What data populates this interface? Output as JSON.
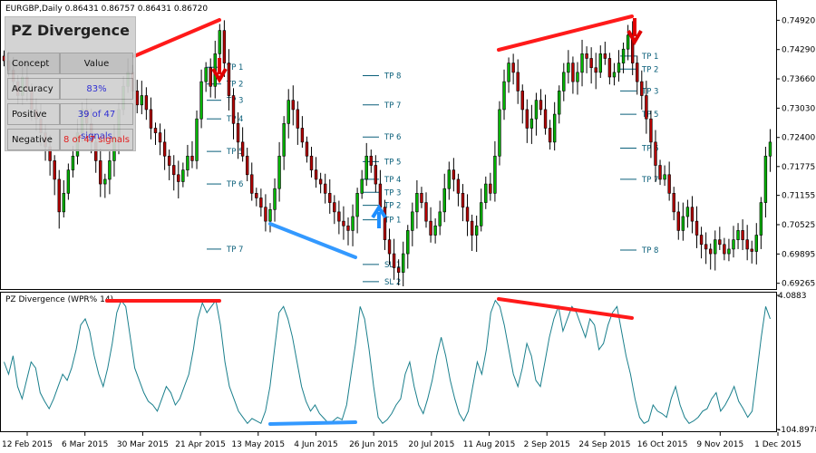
{
  "chart_title": "EURGBP,Daily  0.86431 0.86757 0.86431 0.86720",
  "indicator_label": "PZ Divergence (WPR% 14)",
  "stats": {
    "title": "PZ Divergence",
    "header": [
      "Concept",
      "Value"
    ],
    "rows": [
      {
        "concept": "Accuracy",
        "value": "83%",
        "tone": "good"
      },
      {
        "concept": "Positive",
        "value": "39 of 47 signals",
        "tone": "good"
      },
      {
        "concept": "Negative",
        "value": "8 of 47 signals",
        "tone": "bad"
      }
    ]
  },
  "colors": {
    "bull": "#00b400",
    "bear": "#b40000",
    "wick": "#000000",
    "tp": "#0a5f7a",
    "divergence_bear": "#ff1a1a",
    "divergence_bull": "#3399ff",
    "wpr_line": "#1a7f8c"
  },
  "chart_data": [
    {
      "type": "candlestick",
      "title": "EURGBP,Daily",
      "ylim": [
        0.692,
        0.752
      ],
      "y_ticks": [
        "0.74920",
        "0.74290",
        "0.73660",
        "0.73030",
        "0.72400",
        "0.71775",
        "0.71155",
        "0.70525",
        "0.69895",
        "0.69265"
      ],
      "x_ticks": [
        "12 Feb 2015",
        "6 Mar 2015",
        "30 Mar 2015",
        "21 Apr 2015",
        "13 May 2015",
        "4 Jun 2015",
        "26 Jun 2015",
        "20 Jul 2015",
        "11 Aug 2015",
        "2 Sep 2015",
        "24 Sep 2015",
        "16 Oct 2015",
        "9 Nov 2015",
        "1 Dec 2015"
      ],
      "closes": [
        0.7405,
        0.7385,
        0.736,
        0.733,
        0.737,
        0.734,
        0.73,
        0.728,
        0.725,
        0.722,
        0.719,
        0.715,
        0.708,
        0.712,
        0.717,
        0.72,
        0.725,
        0.73,
        0.727,
        0.723,
        0.719,
        0.714,
        0.715,
        0.719,
        0.724,
        0.73,
        0.735,
        0.738,
        0.734,
        0.731,
        0.733,
        0.73,
        0.726,
        0.725,
        0.723,
        0.72,
        0.718,
        0.716,
        0.7145,
        0.717,
        0.72,
        0.719,
        0.728,
        0.736,
        0.739,
        0.735,
        0.742,
        0.747,
        0.74,
        0.733,
        0.727,
        0.723,
        0.72,
        0.716,
        0.712,
        0.711,
        0.709,
        0.706,
        0.7085,
        0.713,
        0.72,
        0.727,
        0.732,
        0.73,
        0.726,
        0.723,
        0.72,
        0.717,
        0.715,
        0.714,
        0.712,
        0.71,
        0.708,
        0.706,
        0.705,
        0.704,
        0.707,
        0.712,
        0.715,
        0.72,
        0.718,
        0.714,
        0.709,
        0.702,
        0.699,
        0.696,
        0.695,
        0.699,
        0.704,
        0.708,
        0.712,
        0.71,
        0.706,
        0.703,
        0.705,
        0.708,
        0.713,
        0.717,
        0.715,
        0.712,
        0.709,
        0.706,
        0.703,
        0.705,
        0.71,
        0.714,
        0.712,
        0.72,
        0.73,
        0.736,
        0.74,
        0.738,
        0.734,
        0.73,
        0.726,
        0.728,
        0.732,
        0.73,
        0.726,
        0.723,
        0.729,
        0.734,
        0.738,
        0.74,
        0.736,
        0.738,
        0.742,
        0.741,
        0.739,
        0.738,
        0.742,
        0.741,
        0.737,
        0.738,
        0.74,
        0.743,
        0.746,
        0.74,
        0.736,
        0.733,
        0.728,
        0.723,
        0.718,
        0.715,
        0.716,
        0.712,
        0.708,
        0.704,
        0.707,
        0.709,
        0.706,
        0.703,
        0.701,
        0.7,
        0.699,
        0.702,
        0.701,
        0.699,
        0.7,
        0.702,
        0.704,
        0.702,
        0.7,
        0.6995,
        0.703,
        0.71,
        0.72,
        0.723
      ],
      "take_profit_levels": [
        {
          "label": "TP 1",
          "price": 0.7391
        },
        {
          "label": "TP 2",
          "price": 0.7355
        },
        {
          "label": "TP 3",
          "price": 0.732
        },
        {
          "label": "TP 4",
          "price": 0.728
        },
        {
          "label": "TP 5",
          "price": 0.721
        },
        {
          "label": "TP 6",
          "price": 0.714
        },
        {
          "label": "TP 7",
          "price": 0.7
        },
        {
          "label": "TP 8",
          "price": 0.7373
        },
        {
          "label": "TP 7",
          "price": 0.731
        },
        {
          "label": "TP 6",
          "price": 0.7241
        },
        {
          "label": "TP 5",
          "price": 0.7188
        },
        {
          "label": "TP 4",
          "price": 0.715
        },
        {
          "label": "TP 3",
          "price": 0.7122
        },
        {
          "label": "TP 2",
          "price": 0.7094
        },
        {
          "label": "TP 1",
          "price": 0.7063
        },
        {
          "label": "SL 1",
          "price": 0.6967
        },
        {
          "label": "SL 2",
          "price": 0.693
        },
        {
          "label": "TP 1",
          "price": 0.7415
        },
        {
          "label": "TP 2",
          "price": 0.7387
        },
        {
          "label": "TP 3",
          "price": 0.734
        },
        {
          "label": "TP 5",
          "price": 0.729
        },
        {
          "label": "TP 6",
          "price": 0.7217
        },
        {
          "label": "TP 7",
          "price": 0.715
        },
        {
          "label": "TP 8",
          "price": 0.6998
        }
      ]
    },
    {
      "type": "line",
      "title": "PZ Divergence (WPR% 14)",
      "ylim": [
        -104.8978,
        4.0883
      ],
      "y_ticks": [
        "4.0883",
        "-104.8978"
      ],
      "values": [
        -50,
        -60,
        -45,
        -70,
        -80,
        -65,
        -50,
        -55,
        -75,
        -82,
        -88,
        -80,
        -70,
        -60,
        -65,
        -55,
        -40,
        -20,
        -15,
        -25,
        -45,
        -60,
        -70,
        -55,
        -35,
        -10,
        0,
        -5,
        -30,
        -55,
        -65,
        -75,
        -82,
        -85,
        -90,
        -80,
        -70,
        -75,
        -85,
        -80,
        -70,
        -60,
        -40,
        -15,
        -2,
        -10,
        -5,
        0,
        -20,
        -50,
        -70,
        -80,
        -90,
        -95,
        -100,
        -96,
        -98,
        -100,
        -90,
        -70,
        -40,
        -10,
        -5,
        -15,
        -30,
        -50,
        -70,
        -82,
        -90,
        -85,
        -92,
        -96,
        -100,
        -98,
        -95,
        -97,
        -85,
        -60,
        -35,
        -5,
        -15,
        -40,
        -70,
        -95,
        -100,
        -97,
        -92,
        -85,
        -80,
        -60,
        -50,
        -70,
        -85,
        -92,
        -80,
        -65,
        -45,
        -30,
        -45,
        -65,
        -80,
        -92,
        -98,
        -90,
        -70,
        -50,
        -60,
        -40,
        -10,
        0,
        -5,
        -20,
        -40,
        -60,
        -70,
        -55,
        -35,
        -45,
        -65,
        -70,
        -50,
        -30,
        -15,
        -5,
        -25,
        -15,
        -5,
        -10,
        -20,
        -30,
        -15,
        -20,
        -40,
        -35,
        -20,
        -10,
        -5,
        -25,
        -45,
        -60,
        -80,
        -95,
        -100,
        -98,
        -85,
        -90,
        -92,
        -95,
        -80,
        -70,
        -85,
        -95,
        -100,
        -98,
        -95,
        -90,
        -88,
        -80,
        -75,
        -90,
        -85,
        -78,
        -70,
        -82,
        -88,
        -95,
        -90,
        -60,
        -30,
        -5,
        -15
      ]
    }
  ]
}
